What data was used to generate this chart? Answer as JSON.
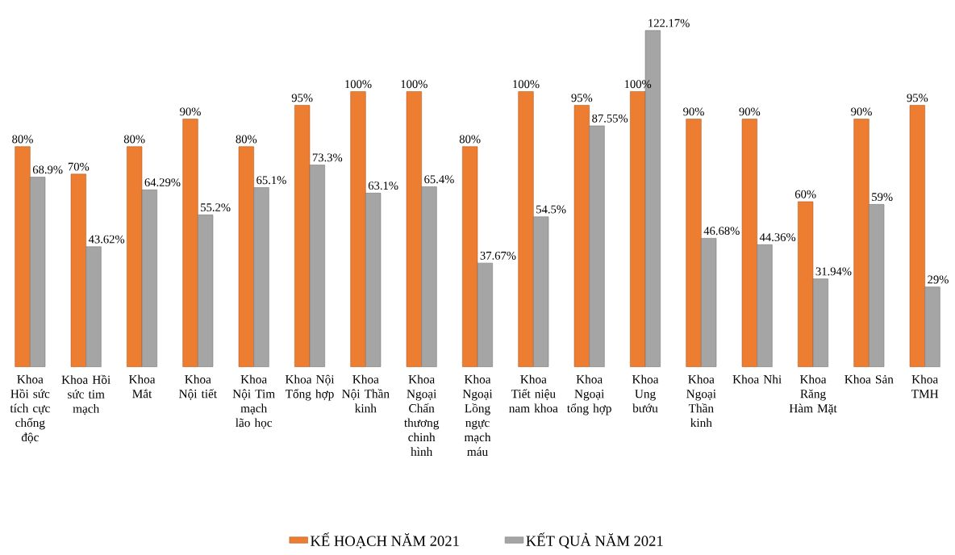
{
  "chart_data": {
    "type": "bar",
    "categories": [
      "Khoa Hồi sức tích cực chống độc",
      "Khoa Hồi sức tim mạch",
      "Khoa Mắt",
      "Khoa Nội tiết",
      "Khoa Nội Tim mạch lão học",
      "Khoa Nội Tổng hợp",
      "Khoa Nội Thần kinh",
      "Khoa Ngoại Chấn thương chinh hình",
      "Khoa Ngoại Lồng ngực mạch máu",
      "Khoa Tiết niệu nam khoa",
      "Khoa Ngoại tổng hợp",
      "Khoa Ung bướu",
      "Khoa Ngoại Thần kinh",
      "Khoa Nhi",
      "Khoa Răng Hàm Mặt",
      "Khoa Sản",
      "Khoa TMH"
    ],
    "series": [
      {
        "name": "KẾ HOẠCH NĂM 2021",
        "color": "#ed7d31",
        "values": [
          80,
          70,
          80,
          90,
          80,
          95,
          100,
          100,
          80,
          100,
          95,
          100,
          90,
          90,
          60,
          90,
          95
        ],
        "value_labels": [
          "80%",
          "70%",
          "80%",
          "90%",
          "80%",
          "95%",
          "100%",
          "100%",
          "80%",
          "100%",
          "95%",
          "100%",
          "90%",
          "90%",
          "60%",
          "90%",
          "95%"
        ]
      },
      {
        "name": "KẾT QUẢ NĂM 2021",
        "color": "#a5a5a5",
        "values": [
          68.9,
          43.62,
          64.29,
          55.2,
          65.1,
          73.3,
          63.1,
          65.4,
          37.67,
          54.5,
          87.55,
          122.17,
          46.68,
          44.36,
          31.94,
          59,
          29
        ],
        "value_labels": [
          "68.9%",
          "43.62%",
          "64.29%",
          "55.2%",
          "65.1%",
          "73.3%",
          "63.1%",
          "65.4%",
          "37.67%",
          "54.5%",
          "87.55%",
          "122.17%",
          "46.68%",
          "44.36%",
          "31.94%",
          "59%",
          "29%"
        ]
      }
    ],
    "legend": "bottom"
  }
}
